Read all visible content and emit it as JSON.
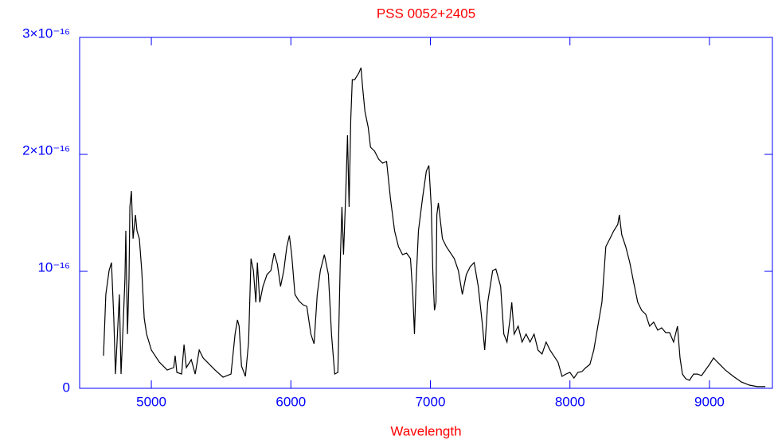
{
  "chart_data": {
    "type": "line",
    "title": "PSS 0052+2405",
    "xlabel": "Wavelength",
    "x": [
      4657,
      4674,
      4697,
      4714,
      4731,
      4743,
      4754,
      4771,
      4783,
      4800,
      4811,
      4817,
      4829,
      4840,
      4846,
      4857,
      4869,
      4886,
      4897,
      4914,
      4931,
      4949,
      4966,
      5000,
      5057,
      5114,
      5160,
      5171,
      5183,
      5217,
      5234,
      5251,
      5286,
      5314,
      5343,
      5371,
      5400,
      5457,
      5514,
      5571,
      5600,
      5617,
      5629,
      5646,
      5674,
      5697,
      5714,
      5731,
      5749,
      5760,
      5777,
      5800,
      5829,
      5857,
      5880,
      5903,
      5926,
      5949,
      5971,
      5989,
      6006,
      6029,
      6057,
      6086,
      6114,
      6143,
      6166,
      6189,
      6211,
      6240,
      6269,
      6291,
      6314,
      6337,
      6354,
      6366,
      6377,
      6394,
      6406,
      6417,
      6429,
      6440,
      6457,
      6486,
      6503,
      6514,
      6531,
      6554,
      6571,
      6600,
      6629,
      6657,
      6686,
      6714,
      6743,
      6771,
      6800,
      6829,
      6857,
      6874,
      6886,
      6897,
      6914,
      6943,
      6971,
      6989,
      7006,
      7017,
      7029,
      7040,
      7046,
      7057,
      7086,
      7114,
      7171,
      7200,
      7229,
      7257,
      7286,
      7314,
      7343,
      7371,
      7389,
      7411,
      7446,
      7469,
      7503,
      7526,
      7549,
      7571,
      7583,
      7600,
      7629,
      7657,
      7686,
      7714,
      7743,
      7771,
      7800,
      7829,
      7857,
      7914,
      7943,
      7971,
      8000,
      8029,
      8057,
      8086,
      8114,
      8143,
      8171,
      8200,
      8229,
      8257,
      8286,
      8314,
      8343,
      8354,
      8371,
      8400,
      8429,
      8457,
      8486,
      8514,
      8543,
      8571,
      8600,
      8629,
      8657,
      8686,
      8714,
      8743,
      8771,
      8789,
      8806,
      8829,
      8857,
      8886,
      8914,
      8943,
      8971,
      9000,
      9029,
      9057,
      9086,
      9114,
      9171,
      9229,
      9286,
      9343,
      9400
    ],
    "values": [
      2.79e-17,
      8.03e-17,
      1.007e-16,
      1.075e-16,
      5.99e-17,
      1.22e-17,
      3.95e-17,
      8.03e-17,
      1.22e-17,
      5.99e-17,
      9.39e-17,
      1.347e-16,
      4.63e-17,
      9.39e-17,
      1.551e-16,
      1.687e-16,
      1.279e-16,
      1.483e-16,
      1.347e-16,
      1.279e-16,
      1.007e-16,
      5.99e-17,
      4.63e-17,
      3.27e-17,
      2.24e-17,
      1.56e-17,
      1.77e-17,
      2.79e-17,
      1.36e-17,
      1.22e-17,
      3.74e-17,
      1.77e-17,
      2.45e-17,
      1.22e-17,
      3.27e-17,
      2.59e-17,
      2.24e-17,
      1.56e-17,
      9.5e-18,
      1.22e-17,
      4.63e-17,
      5.85e-17,
      5.31e-17,
      1.9e-17,
      1.02e-17,
      3.95e-17,
      1.109e-16,
      1.007e-16,
      7.35e-17,
      1.075e-16,
      7.35e-17,
      8.71e-17,
      9.73e-17,
      1.007e-16,
      1.156e-16,
      1.061e-16,
      8.71e-17,
      1.007e-16,
      1.211e-16,
      1.306e-16,
      1.143e-16,
      8.03e-17,
      7.48e-17,
      7.14e-17,
      7.01e-17,
      4.63e-17,
      3.81e-17,
      8.03e-17,
      1.007e-16,
      1.143e-16,
      9.73e-17,
      4.63e-17,
      1.22e-17,
      1.36e-17,
      1.075e-16,
      1.551e-16,
      1.143e-16,
      1.687e-16,
      2.163e-16,
      1.551e-16,
      2.299e-16,
      2.639e-16,
      2.639e-16,
      2.694e-16,
      2.741e-16,
      2.571e-16,
      2.367e-16,
      2.231e-16,
      2.061e-16,
      2.027e-16,
      1.959e-16,
      1.925e-16,
      1.939e-16,
      1.619e-16,
      1.347e-16,
      1.211e-16,
      1.143e-16,
      1.156e-16,
      1.109e-16,
      8.03e-17,
      4.63e-17,
      9.05e-17,
      1.347e-16,
      1.619e-16,
      1.857e-16,
      1.905e-16,
      1.551e-16,
      1.007e-16,
      6.67e-17,
      7.35e-17,
      1.483e-16,
      1.585e-16,
      1.279e-16,
      1.211e-16,
      1.109e-16,
      1.007e-16,
      8.03e-17,
      9.73e-17,
      1.041e-16,
      1.075e-16,
      8.71e-17,
      5.65e-17,
      3.27e-17,
      7.35e-17,
      1.007e-16,
      1.02e-16,
      8.71e-17,
      4.63e-17,
      3.95e-17,
      5.99e-17,
      7.35e-17,
      4.63e-17,
      5.31e-17,
      3.95e-17,
      4.63e-17,
      3.95e-17,
      4.63e-17,
      3.27e-17,
      2.93e-17,
      3.95e-17,
      3.27e-17,
      2.24e-17,
      1.02e-17,
      1.22e-17,
      1.36e-17,
      8.8e-18,
      1.36e-17,
      1.43e-17,
      1.77e-17,
      2.04e-17,
      3.27e-17,
      5.31e-17,
      7.35e-17,
      1.211e-16,
      1.279e-16,
      1.347e-16,
      1.401e-16,
      1.483e-16,
      1.313e-16,
      1.211e-16,
      1.075e-16,
      9.05e-17,
      7.35e-17,
      6.67e-17,
      6.33e-17,
      5.31e-17,
      5.65e-17,
      4.97e-17,
      5.17e-17,
      4.76e-17,
      4.76e-17,
      3.95e-17,
      5.31e-17,
      2.59e-17,
      1.22e-17,
      8.2e-18,
      6.8e-18,
      1.22e-17,
      1.22e-17,
      1.09e-17,
      1.56e-17,
      2.04e-17,
      2.59e-17,
      2.24e-17,
      1.9e-17,
      1.56e-17,
      1.02e-17,
      5.4e-18,
      2.7e-18,
      1.4e-18,
      1.4e-18
    ],
    "color": "#000000",
    "axis_color": "#0000ff",
    "text_color": "#ff0000",
    "xlim": [
      4486,
      9451
    ],
    "xticks": [
      5000,
      6000,
      7000,
      8000,
      9000
    ],
    "ylim": [
      0,
      3e-16
    ],
    "yticks": [
      0,
      {
        "value": 1e-16,
        "label": "10⁻¹⁶"
      },
      {
        "value": 2e-16,
        "label": "2×10⁻¹⁶"
      },
      {
        "value": 3e-16,
        "label": "3×10⁻¹⁶"
      }
    ]
  }
}
